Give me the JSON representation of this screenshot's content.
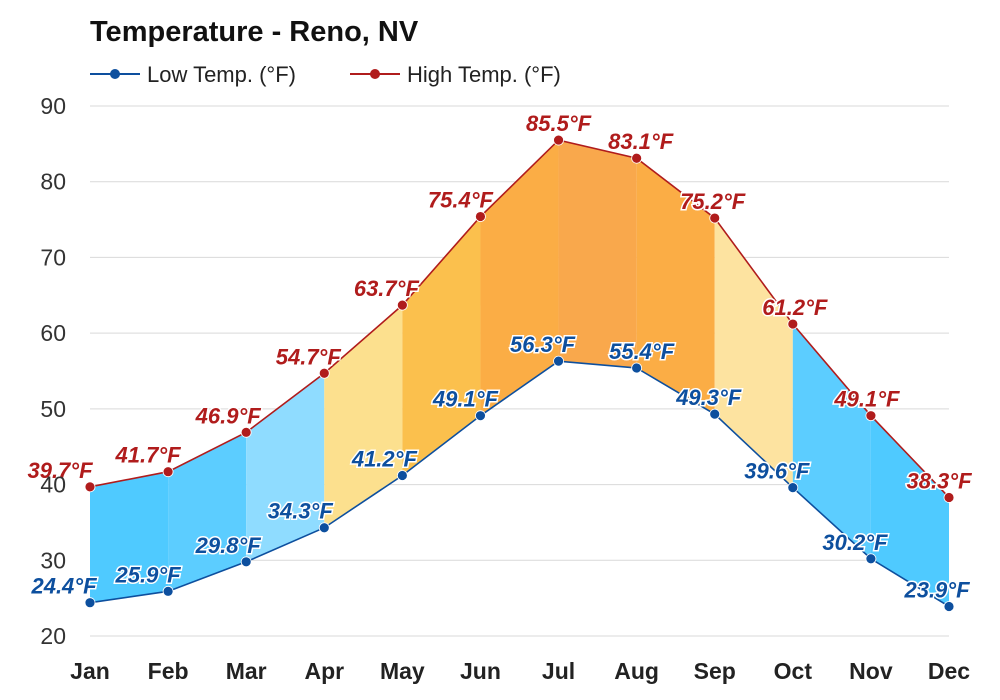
{
  "chart_data": {
    "type": "line",
    "title": "Temperature - Reno, NV",
    "categories": [
      "Jan",
      "Feb",
      "Mar",
      "Apr",
      "May",
      "Jun",
      "Jul",
      "Aug",
      "Sep",
      "Oct",
      "Nov",
      "Dec"
    ],
    "series": [
      {
        "name": "Low Temp. (°F)",
        "values": [
          24.4,
          25.9,
          29.8,
          34.3,
          41.2,
          49.1,
          56.3,
          55.4,
          49.3,
          39.6,
          30.2,
          23.9
        ],
        "labels": [
          "24.4°F",
          "25.9°F",
          "29.8°F",
          "34.3°F",
          "41.2°F",
          "49.1°F",
          "56.3°F",
          "55.4°F",
          "49.3°F",
          "39.6°F",
          "30.2°F",
          "23.9°F"
        ],
        "color": "#0d4f9e"
      },
      {
        "name": "High Temp. (°F)",
        "values": [
          39.7,
          41.7,
          46.9,
          54.7,
          63.7,
          75.4,
          85.5,
          83.1,
          75.2,
          61.2,
          49.1,
          38.3
        ],
        "labels": [
          "39.7°F",
          "41.7°F",
          "46.9°F",
          "54.7°F",
          "63.7°F",
          "75.4°F",
          "85.5°F",
          "83.1°F",
          "75.2°F",
          "61.2°F",
          "49.1°F",
          "38.3°F"
        ],
        "color": "#b01c1c"
      }
    ],
    "band_colors": [
      "#4fcaff",
      "#5ccdff",
      "#8fdcff",
      "#fce08e",
      "#fbc04d",
      "#fbad45",
      "#f9a84c",
      "#fbad45",
      "#fde3a0",
      "#5ccdff",
      "#4fcaff",
      "#4fcaff"
    ],
    "yticks": [
      "20",
      "30",
      "40",
      "50",
      "60",
      "70",
      "80",
      "90"
    ],
    "ylim": [
      20,
      90
    ],
    "grid": true,
    "legend_position": "top-left"
  }
}
